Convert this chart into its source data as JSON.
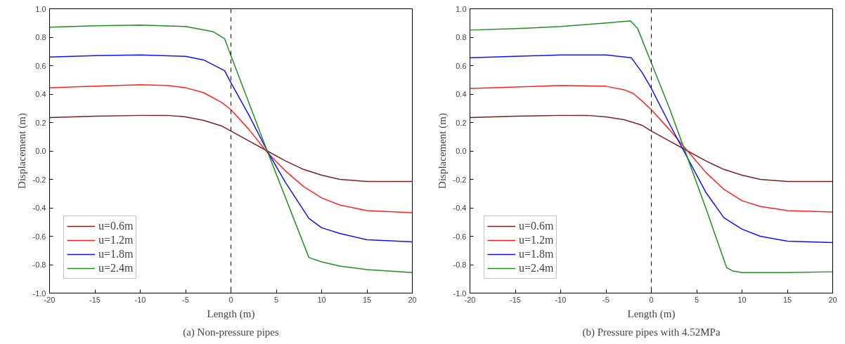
{
  "chart_data": [
    {
      "type": "line",
      "title": "(a) Non-pressure pipes",
      "xlabel": "Length (m)",
      "ylabel": "Displacement (m)",
      "xlim": [
        -20,
        20
      ],
      "ylim": [
        -1.0,
        1.0
      ],
      "xticks": [
        -20,
        -15,
        -10,
        -5,
        0,
        5,
        10,
        15,
        20
      ],
      "yticks": [
        {
          "value": -1.0,
          "label": "-1.0"
        },
        {
          "value": -0.8,
          "label": "-0.8"
        },
        {
          "value": -0.6,
          "label": "-0.6"
        },
        {
          "value": -0.4,
          "label": "-0.4"
        },
        {
          "value": -0.2,
          "label": "-0.2"
        },
        {
          "value": 0.0,
          "label": "0.0"
        },
        {
          "value": 0.2,
          "label": "0.2"
        },
        {
          "value": 0.4,
          "label": "0.4"
        },
        {
          "value": 0.6,
          "label": "0.6"
        },
        {
          "value": 0.8,
          "label": "0.8"
        },
        {
          "value": 1.0,
          "label": "1.0"
        }
      ],
      "grid": false,
      "legend": "bottom left",
      "line_style": "solid",
      "marker": "none",
      "ref_lines": [
        {
          "axis": "x",
          "value": 0,
          "label": null,
          "color": "#000000",
          "line_style": "dashed"
        }
      ],
      "series": [
        {
          "name": "u=0.6m",
          "color": "#7b1f1f",
          "x": [
            -20,
            -15,
            -10,
            -7,
            -5,
            -3,
            -1,
            0,
            2,
            4,
            6,
            8,
            10,
            12,
            15,
            20
          ],
          "values": [
            0.235,
            0.245,
            0.25,
            0.25,
            0.24,
            0.215,
            0.175,
            0.14,
            0.07,
            0.0,
            -0.07,
            -0.13,
            -0.17,
            -0.2,
            -0.215,
            -0.215
          ]
        },
        {
          "name": "u=1.2m",
          "color": "#ff2020",
          "x": [
            -20,
            -15,
            -10,
            -7,
            -5,
            -3,
            -1,
            0,
            2,
            4,
            6,
            8,
            10,
            12,
            15,
            20
          ],
          "values": [
            0.445,
            0.455,
            0.465,
            0.46,
            0.445,
            0.41,
            0.34,
            0.29,
            0.15,
            -0.01,
            -0.14,
            -0.25,
            -0.33,
            -0.38,
            -0.42,
            -0.435
          ]
        },
        {
          "name": "u=1.8m",
          "color": "#1010ff",
          "x": [
            -20,
            -15,
            -10,
            -5,
            -3,
            -0.7,
            0,
            2,
            4,
            6,
            8.6,
            10,
            12,
            15,
            20
          ],
          "values": [
            0.66,
            0.67,
            0.675,
            0.665,
            0.64,
            0.565,
            0.48,
            0.25,
            0.0,
            -0.22,
            -0.475,
            -0.54,
            -0.58,
            -0.625,
            -0.64
          ]
        },
        {
          "name": "u=2.4m",
          "color": "#1f8f1f",
          "x": [
            -20,
            -15,
            -10,
            -5,
            -2,
            -0.7,
            0,
            4,
            8.6,
            10,
            12,
            15,
            20
          ],
          "values": [
            0.87,
            0.88,
            0.885,
            0.875,
            0.84,
            0.79,
            0.67,
            0.0,
            -0.75,
            -0.78,
            -0.81,
            -0.835,
            -0.855
          ]
        }
      ]
    },
    {
      "type": "line",
      "title": "(b) Pressure pipes with 4.52MPa",
      "xlabel": "Length (m)",
      "ylabel": "Displacement (m)",
      "xlim": [
        -20,
        20
      ],
      "ylim": [
        -1.0,
        1.0
      ],
      "xticks": [
        -20,
        -15,
        -10,
        -5,
        0,
        5,
        10,
        15,
        20
      ],
      "yticks": [
        {
          "value": -1.0,
          "label": "-1.0"
        },
        {
          "value": -0.8,
          "label": "-0.8"
        },
        {
          "value": -0.6,
          "label": "-0.6"
        },
        {
          "value": -0.4,
          "label": "-0.4"
        },
        {
          "value": -0.2,
          "label": "-0.2"
        },
        {
          "value": 0.0,
          "label": "0.0"
        },
        {
          "value": 0.2,
          "label": "0.2"
        },
        {
          "value": 0.4,
          "label": "0.4"
        },
        {
          "value": 0.6,
          "label": "0.6"
        },
        {
          "value": 0.8,
          "label": "0.8"
        },
        {
          "value": 1.0,
          "label": "1.0"
        }
      ],
      "grid": false,
      "legend": "bottom left",
      "line_style": "solid",
      "marker": "none",
      "ref_lines": [
        {
          "axis": "x",
          "value": 0,
          "label": null,
          "color": "#000000",
          "line_style": "dashed"
        }
      ],
      "series": [
        {
          "name": "u=0.6m",
          "color": "#7b1f1f",
          "x": [
            -20,
            -15,
            -10,
            -7,
            -5,
            -3,
            -1,
            0,
            2,
            4,
            6,
            8,
            10,
            12,
            15,
            20
          ],
          "values": [
            0.235,
            0.245,
            0.25,
            0.25,
            0.24,
            0.22,
            0.18,
            0.14,
            0.07,
            0.0,
            -0.07,
            -0.13,
            -0.17,
            -0.2,
            -0.215,
            -0.215
          ]
        },
        {
          "name": "u=1.2m",
          "color": "#ff2020",
          "x": [
            -20,
            -10,
            -5,
            -3,
            -2,
            -1,
            0,
            2,
            4,
            6,
            8,
            10,
            12,
            15,
            20
          ],
          "values": [
            0.44,
            0.46,
            0.455,
            0.43,
            0.405,
            0.35,
            0.29,
            0.15,
            0.0,
            -0.15,
            -0.27,
            -0.35,
            -0.39,
            -0.42,
            -0.43
          ]
        },
        {
          "name": "u=1.8m",
          "color": "#1010ff",
          "x": [
            -20,
            -10,
            -5,
            -2.2,
            -1,
            0,
            2,
            4,
            6,
            8,
            10,
            12,
            15,
            20
          ],
          "values": [
            0.655,
            0.675,
            0.675,
            0.655,
            0.55,
            0.44,
            0.19,
            -0.05,
            -0.29,
            -0.47,
            -0.55,
            -0.6,
            -0.635,
            -0.645
          ]
        },
        {
          "name": "u=2.4m",
          "color": "#1f8f1f",
          "x": [
            -20,
            -15,
            -10,
            -5,
            -2.3,
            -1.5,
            0,
            2,
            4,
            6,
            8.3,
            9,
            10,
            15,
            20
          ],
          "values": [
            0.85,
            0.86,
            0.875,
            0.9,
            0.915,
            0.86,
            0.62,
            0.3,
            -0.05,
            -0.4,
            -0.82,
            -0.845,
            -0.855,
            -0.855,
            -0.85
          ]
        }
      ]
    }
  ]
}
